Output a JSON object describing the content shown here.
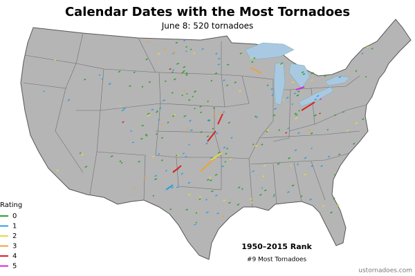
{
  "title": "Calendar Dates with the Most Tornadoes",
  "subtitle": "June 8: 520 tornadoes",
  "legend": {
    "title": "Rating",
    "items": [
      {
        "label": "0",
        "color": "#2e9e2e"
      },
      {
        "label": "1",
        "color": "#2a9fe0"
      },
      {
        "label": "2",
        "color": "#e6da3c"
      },
      {
        "label": "3",
        "color": "#f0a232"
      },
      {
        "label": "4",
        "color": "#d8221e"
      },
      {
        "label": "5",
        "color": "#d626d6"
      }
    ]
  },
  "rank": {
    "title": "1950–2015 Rank",
    "text": "#9 Most Tornadoes"
  },
  "credit": "ustornadoes.com"
}
